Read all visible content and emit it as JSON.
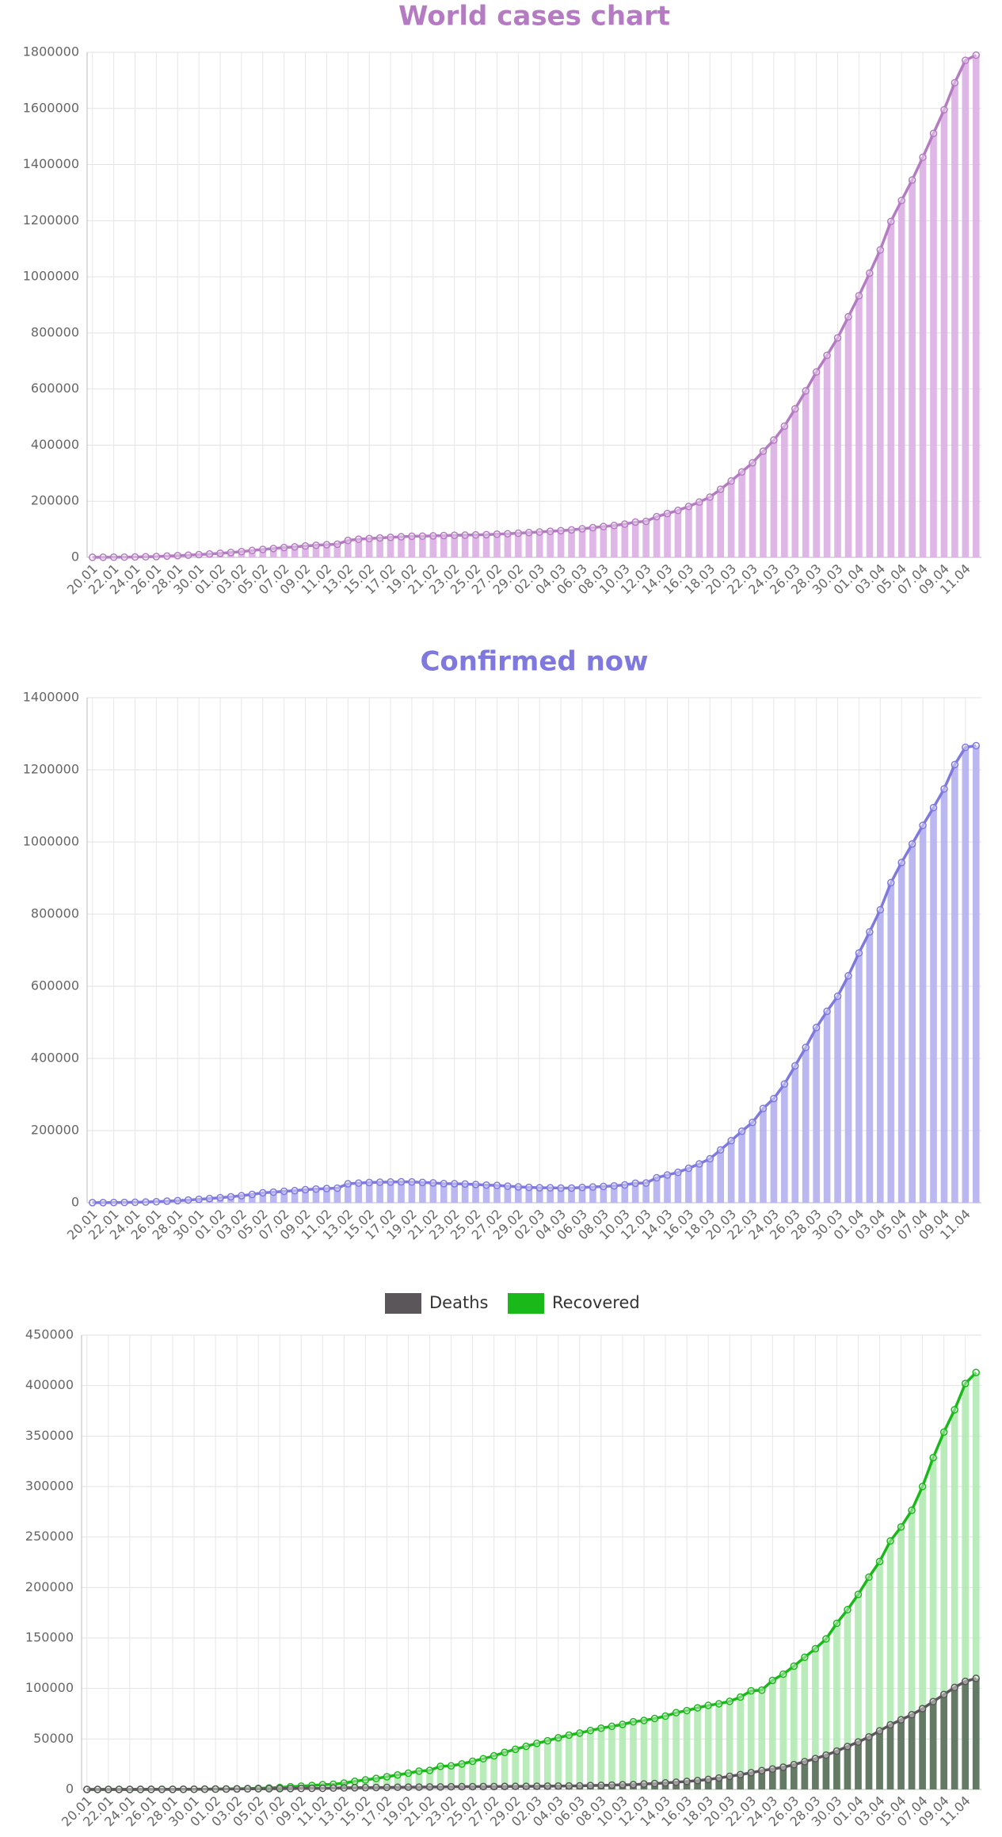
{
  "chart_data": [
    {
      "type": "bar_line",
      "title": "World cases chart",
      "categories": [
        "20.01",
        null,
        "22.01",
        null,
        "24.01",
        null,
        "26.01",
        null,
        "28.01",
        null,
        "30.01",
        null,
        "01.02",
        null,
        "03.02",
        null,
        "05.02",
        null,
        "07.02",
        null,
        "09.02",
        null,
        "11.02",
        null,
        "13.02",
        null,
        "15.02",
        null,
        "17.02",
        null,
        "19.02",
        null,
        "21.02",
        null,
        "23.02",
        null,
        "25.02",
        null,
        "27.02",
        null,
        "29.02",
        null,
        "02.03",
        null,
        "04.03",
        null,
        "06.03",
        null,
        "08.03",
        null,
        "10.03",
        null,
        "12.03",
        null,
        "14.03",
        null,
        "16.03",
        null,
        "18.03",
        null,
        "20.03",
        null,
        "22.03",
        null,
        "24.03",
        null,
        "26.03",
        null,
        "28.03",
        null,
        "30.03",
        null,
        "01.04",
        null,
        "03.04",
        null,
        "05.04",
        null,
        "07.04",
        null,
        "09.04",
        null,
        "11.04",
        null
      ],
      "series": [
        {
          "color": "#b57bc2",
          "bar_color": "#dcafe3",
          "values": [
            282,
            314,
            581,
            846,
            1320,
            2014,
            2798,
            4593,
            6065,
            7818,
            9826,
            11953,
            14557,
            17391,
            20630,
            24554,
            28276,
            31481,
            34886,
            37558,
            40554,
            43103,
            45171,
            46997,
            60328,
            64543,
            67065,
            69246,
            71322,
            73330,
            75204,
            75748,
            76769,
            77794,
            78811,
            79339,
            80134,
            80997,
            82627,
            84238,
            86075,
            88371,
            90309,
            92844,
            95124,
            97886,
            101800,
            105836,
            109835,
            113582,
            118582,
            125865,
            128343,
            145193,
            156097,
            167449,
            181546,
            197168,
            214915,
            242713,
            272167,
            304528,
            337020,
            378287,
            418045,
            467653,
            529591,
            593291,
            660706,
            720117,
            782365,
            857487,
            932605,
            1013157,
            1095917,
            1197405,
            1272115,
            1345101,
            1426096,
            1511104,
            1595350,
            1691719,
            1771514,
            1790000
          ]
        }
      ],
      "ylim": [
        0,
        1800000
      ],
      "yticks": [
        0,
        200000,
        400000,
        600000,
        800000,
        1000000,
        1200000,
        1400000,
        1600000,
        1800000
      ],
      "grid": true,
      "title_color": "#b57bc2"
    },
    {
      "type": "bar_line",
      "title": "Confirmed now",
      "categories": [
        "20.01",
        null,
        "22.01",
        null,
        "24.01",
        null,
        "26.01",
        null,
        "28.01",
        null,
        "30.01",
        null,
        "01.02",
        null,
        "03.02",
        null,
        "05.02",
        null,
        "07.02",
        null,
        "09.02",
        null,
        "11.02",
        null,
        "13.02",
        null,
        "15.02",
        null,
        "17.02",
        null,
        "19.02",
        null,
        "21.02",
        null,
        "23.02",
        null,
        "25.02",
        null,
        "27.02",
        null,
        "29.02",
        null,
        "02.03",
        null,
        "04.03",
        null,
        "06.03",
        null,
        "08.03",
        null,
        "10.03",
        null,
        "12.03",
        null,
        "14.03",
        null,
        "16.03",
        null,
        "18.03",
        null,
        "20.03",
        null,
        "22.03",
        null,
        "24.03",
        null,
        "26.03",
        null,
        "28.03",
        null,
        "30.03",
        null,
        "01.04",
        null,
        "03.04",
        null,
        "05.04",
        null,
        "07.04",
        null,
        "09.04",
        null,
        "11.04",
        null
      ],
      "series": [
        {
          "color": "#7f78de",
          "bar_color": "#b4afee",
          "values": [
            270,
            300,
            530,
            790,
            1240,
            1920,
            2670,
            4400,
            5820,
            7520,
            9470,
            11470,
            13900,
            16500,
            19500,
            23100,
            27500,
            29300,
            31700,
            33400,
            36300,
            38000,
            39300,
            40500,
            52500,
            54500,
            56000,
            57000,
            57500,
            58000,
            57600,
            56400,
            55000,
            53000,
            52800,
            52000,
            50600,
            49000,
            48000,
            46000,
            44000,
            42570,
            41547,
            41362,
            40606,
            40630,
            42377,
            43676,
            45153,
            46826,
            49563,
            54142,
            54615,
            69123,
            77033,
            84289,
            95553,
            107595,
            121841,
            146560,
            171906,
            198388,
            222758,
            261345,
            288815,
            329122,
            379377,
            430628,
            485613,
            530835,
            572419,
            629132,
            692428,
            750894,
            812121,
            887253,
            943103,
            994586,
            1046042,
            1095443,
            1147375,
            1214623,
            1262404,
            1267000
          ]
        }
      ],
      "ylim": [
        0,
        1400000
      ],
      "yticks": [
        0,
        200000,
        400000,
        600000,
        800000,
        1000000,
        1200000,
        1400000
      ],
      "grid": true,
      "title_color": "#7f78de"
    },
    {
      "type": "bar_line",
      "categories": [
        "20.01",
        null,
        "22.01",
        null,
        "24.01",
        null,
        "26.01",
        null,
        "28.01",
        null,
        "30.01",
        null,
        "01.02",
        null,
        "03.02",
        null,
        "05.02",
        null,
        "07.02",
        null,
        "09.02",
        null,
        "11.02",
        null,
        "13.02",
        null,
        "15.02",
        null,
        "17.02",
        null,
        "19.02",
        null,
        "21.02",
        null,
        "23.02",
        null,
        "25.02",
        null,
        "27.02",
        null,
        "29.02",
        null,
        "02.03",
        null,
        "04.03",
        null,
        "06.03",
        null,
        "08.03",
        null,
        "10.03",
        null,
        "12.03",
        null,
        "14.03",
        null,
        "16.03",
        null,
        "18.03",
        null,
        "20.03",
        null,
        "22.03",
        null,
        "24.03",
        null,
        "26.03",
        null,
        "28.03",
        null,
        "30.03",
        null,
        "01.04",
        null,
        "03.04",
        null,
        "05.04",
        null,
        "07.04",
        null,
        "09.04",
        null,
        "11.04",
        null
      ],
      "series": [
        {
          "name": "Recovered",
          "color": "#19b919",
          "bar_color": "#b3e9b3",
          "values": [
            0,
            0,
            28,
            30,
            36,
            39,
            52,
            61,
            107,
            126,
            143,
            222,
            284,
            472,
            623,
            852,
            1124,
            1487,
            2011,
            2616,
            3244,
            3946,
            4683,
            5150,
            6295,
            8058,
            9395,
            10865,
            12583,
            14352,
            16121,
            18177,
            18890,
            22886,
            23394,
            25227,
            27905,
            30384,
            33277,
            36711,
            39782,
            42716,
            45602,
            48228,
            51170,
            53796,
            55865,
            58358,
            60694,
            62494,
            64404,
            67003,
            68324,
            70251,
            72624,
            76034,
            78088,
            80840,
            83207,
            84854,
            87256,
            91499,
            97704,
            98334,
            108000,
            114218,
            122150,
            130915,
            139415,
            149082,
            164566,
            178034,
            193177,
            210263,
            225796,
            246152,
            260012,
            276515,
            300054,
            328661,
            353975,
            376096,
            402110,
            413000
          ]
        },
        {
          "name": "Deaths",
          "color": "#5a5659",
          "bar_color": "#5b6e5b",
          "values": [
            6,
            6,
            17,
            25,
            41,
            56,
            80,
            131,
            133,
            171,
            213,
            259,
            362,
            426,
            492,
            564,
            634,
            719,
            806,
            906,
            1013,
            1113,
            1118,
            1371,
            1523,
            1666,
            1770,
            1868,
            2007,
            2122,
            2247,
            2251,
            2458,
            2469,
            2629,
            2708,
            2770,
            2814,
            2872,
            2941,
            2996,
            3085,
            3160,
            3254,
            3348,
            3460,
            3558,
            3802,
            3988,
            4262,
            4615,
            4720,
            5404,
            5819,
            6440,
            7126,
            7905,
            8733,
            9867,
            11299,
            13005,
            14641,
            16558,
            18608,
            20200,
            22000,
            24500,
            27500,
            30500,
            34000,
            38000,
            42500,
            47000,
            52000,
            58000,
            64000,
            69000,
            74000,
            80000,
            87000,
            94000,
            101000,
            107000,
            110000
          ]
        }
      ],
      "legend_order": [
        1,
        0
      ],
      "ylim": [
        0,
        450000
      ],
      "yticks": [
        0,
        50000,
        100000,
        150000,
        200000,
        250000,
        300000,
        350000,
        400000,
        450000
      ],
      "grid": true
    }
  ]
}
